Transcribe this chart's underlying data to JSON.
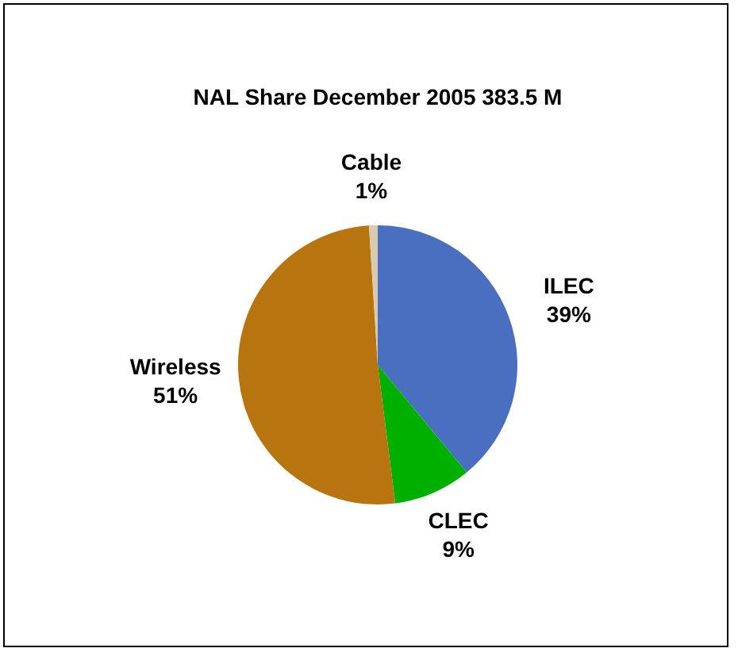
{
  "chart_data": {
    "type": "pie",
    "title": "NAL Share December 2005 383.5 M",
    "categories": [
      "ILEC",
      "CLEC",
      "Wireless",
      "Cable"
    ],
    "values": [
      39,
      9,
      51,
      1
    ],
    "colors": [
      "#4a6fc0",
      "#00b000",
      "#b8740e",
      "#d9cbb0"
    ],
    "value_labels": [
      "39%",
      "9%",
      "51%",
      "1%"
    ]
  }
}
